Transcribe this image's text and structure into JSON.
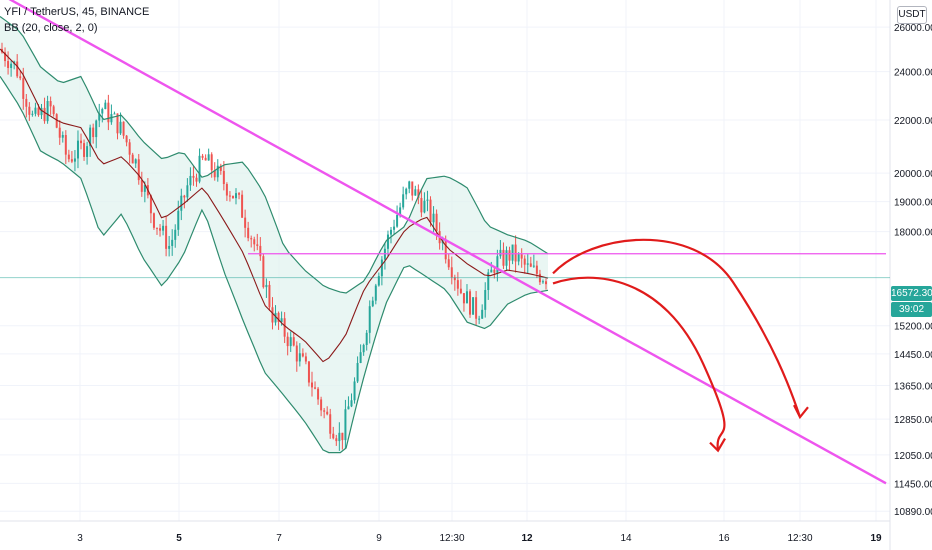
{
  "header": {
    "symbol_title": "YFI / TetherUS, 45, BINANCE",
    "indicator_title": "BB (20, close, 2, 0)",
    "currency_badge": "USDT"
  },
  "price_scale": {
    "labels": [
      "26000.00",
      "24000.00",
      "22000.00",
      "20000.00",
      "19000.00",
      "18000.00",
      "15200.00",
      "14450.00",
      "13650.00",
      "12850.00",
      "12050.00",
      "11450.00",
      "10890.00"
    ],
    "cropped_top_label": "2",
    "last_price": "16572.30",
    "countdown": "39:02"
  },
  "time_scale": {
    "labels": [
      "3",
      "5",
      "7",
      "9",
      "12:30",
      "12",
      "14",
      "16",
      "12:30",
      "19"
    ],
    "bold_labels": [
      "5",
      "12",
      "19"
    ]
  },
  "colors": {
    "up": "#26a69a",
    "down": "#ef5350",
    "bb_band": "#2e8b6e",
    "bb_fill": "#e0f2ee",
    "bb_basis": "#8b1a1a",
    "trendline": "#ee55ee",
    "resistance": "#ee55ee",
    "forecast_arrows": "#e01b1b",
    "last_price_line": "#26a69a"
  },
  "chart_data": {
    "type": "candlestick",
    "symbol": "YFI / TetherUS",
    "interval": "45",
    "exchange": "BINANCE",
    "indicator": "BB (20, close, 2, 0)",
    "y_scale": "log",
    "ylim": [
      10890,
      27000
    ],
    "last_price": 16572.3,
    "close_path": [
      25000,
      24200,
      22000,
      22500,
      20500,
      21000,
      22500,
      21800,
      20400,
      18500,
      17500,
      19500,
      20500,
      19800,
      19000,
      17500,
      15500,
      14800,
      14000,
      13000,
      12400,
      14000,
      16500,
      18200,
      19500,
      18800,
      17600,
      16200,
      15500,
      17000,
      17300,
      16800,
      16600
    ],
    "bb_upper": [
      26500,
      25800,
      24200,
      23500,
      23800,
      22000,
      22200,
      21200,
      20500,
      20800,
      19800,
      20300,
      20400,
      19300,
      17500,
      16800,
      16300,
      16100,
      16500,
      17700,
      18200,
      19800,
      19900,
      19500,
      18200,
      17900,
      17700,
      17300
    ],
    "bb_basis": [
      25000,
      24100,
      22400,
      21900,
      21700,
      20300,
      20600,
      19800,
      18400,
      18900,
      19500,
      18400,
      17300,
      15800,
      15200,
      14800,
      14200,
      14900,
      16300,
      17100,
      18100,
      18500,
      17500,
      17000,
      16600,
      16800,
      16700,
      16560
    ],
    "bb_lower": [
      23800,
      22500,
      20800,
      20400,
      19800,
      17800,
      18600,
      17200,
      16300,
      17200,
      18800,
      16800,
      15300,
      14000,
      13400,
      12800,
      12100,
      12100,
      14000,
      15800,
      17000,
      16600,
      16200,
      15300,
      15100,
      15800,
      16100,
      16200
    ],
    "trendline": {
      "from": [
        0,
        27600
      ],
      "to": [
        1,
        11450
      ]
    },
    "resistance_level": 17300,
    "forecast_arrows": [
      {
        "label": "",
        "from_price": 16700,
        "peak_price": 17350,
        "to_price": 12850
      },
      {
        "label": "",
        "from_price": 16400,
        "to_price": 12100
      }
    ],
    "price_ticks": [
      26000,
      24000,
      22000,
      20000,
      19000,
      18000,
      16572.3,
      15200,
      14450,
      13650,
      12850,
      12050,
      11450,
      10890
    ],
    "time_ticks": [
      "3",
      "5",
      "7",
      "9",
      "12:30",
      "12",
      "14",
      "16",
      "12:30",
      "19"
    ]
  }
}
